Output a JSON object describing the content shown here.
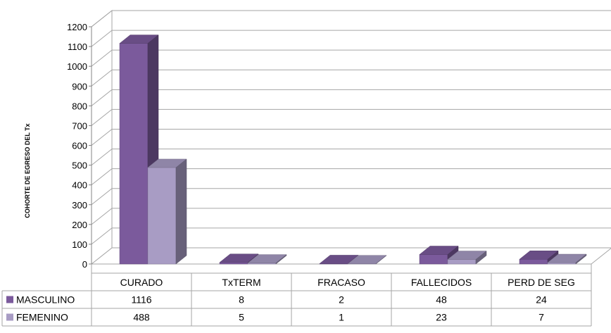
{
  "chart_data": {
    "type": "bar",
    "ylabel": "COHORTE DE EGRESO DEL Tx",
    "ylim": [
      0,
      1200
    ],
    "y_ticks": [
      "0",
      "100",
      "200",
      "300",
      "400",
      "500",
      "600",
      "700",
      "800",
      "900",
      "1000",
      "1100",
      "1200"
    ],
    "grid": true,
    "legend": "data-table",
    "categories": [
      "CURADO",
      "TxTERM",
      "FRACASO",
      "FALLECIDOS",
      "PERD DE SEG"
    ],
    "series": [
      {
        "name": "MASCULINO",
        "values": [
          1116,
          8,
          2,
          48,
          24
        ],
        "value_labels": [
          "1116",
          "8",
          "2",
          "48",
          "24"
        ],
        "color": "#7B5A9C"
      },
      {
        "name": "FEMENINO",
        "values": [
          488,
          5,
          1,
          23,
          7
        ],
        "value_labels": [
          "488",
          "5",
          "1",
          "23",
          "7"
        ],
        "color": "#A89CC4"
      }
    ]
  }
}
